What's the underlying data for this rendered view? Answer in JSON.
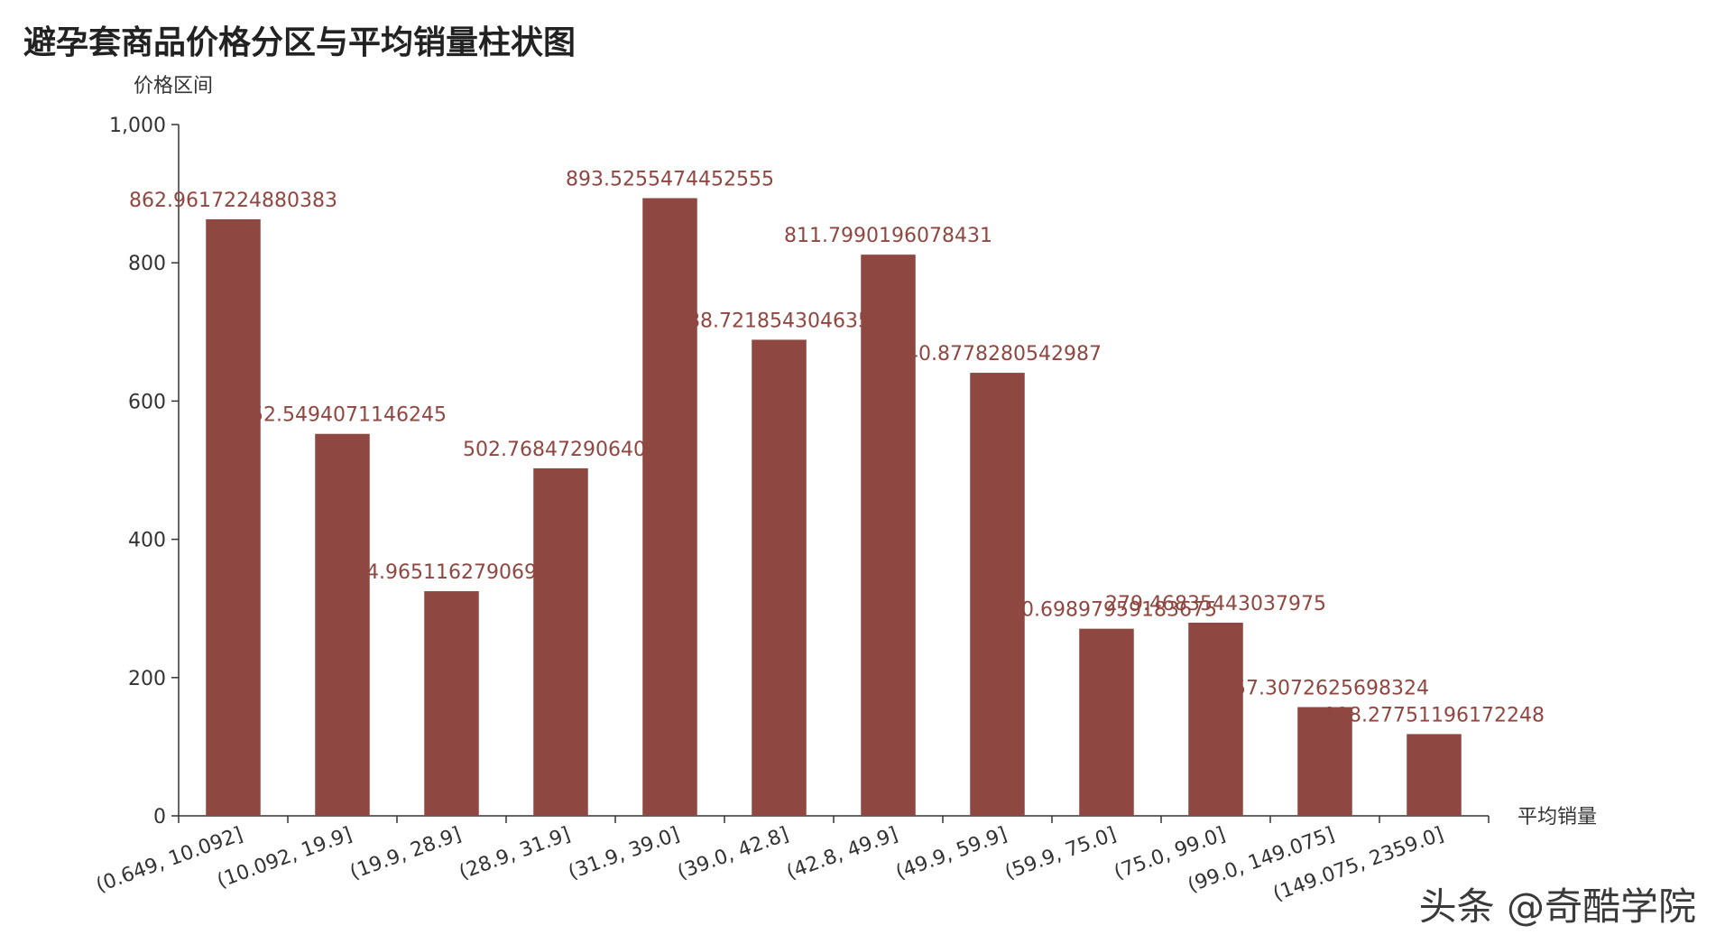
{
  "chart_data": {
    "type": "bar",
    "title": "避孕套商品价格分区与平均销量柱状图",
    "ylabel": "价格区间",
    "xlabel": "平均销量",
    "categories": [
      "(0.649, 10.092]",
      "(10.092, 19.9]",
      "(19.9, 28.9]",
      "(28.9, 31.9]",
      "(31.9, 39.0]",
      "(39.0, 42.8]",
      "(42.8, 49.9]",
      "(49.9, 59.9]",
      "(59.9, 75.0]",
      "(75.0, 99.0]",
      "(99.0, 149.075]",
      "(149.075, 2359.0]"
    ],
    "values": [
      862.9617224880383,
      552.5494071146245,
      324.9651162790698,
      502.768472906403,
      893.5255474452555,
      688.7218543046358,
      811.7990196078431,
      640.8778280542987,
      270.69897959183675,
      279.46835443037975,
      157.3072625698324,
      118.27751196172248
    ],
    "data_labels": [
      "862.9617224880383",
      "552.5494071146245",
      "324.96511627906977",
      "502.768472906403",
      "893.5255474452555",
      "688.7218543046358",
      "811.7990196078431",
      "640.8778280542987",
      "270.69897959183675",
      "279.46835443037975",
      "157.3072625698324",
      "118.27751196172248"
    ],
    "ylim": [
      0,
      1000
    ],
    "yticks": [
      0,
      200,
      400,
      600,
      800,
      1000
    ],
    "ytick_labels": [
      "0",
      "200",
      "400",
      "600",
      "800",
      "1,000"
    ],
    "grid": false,
    "bar_color": "#8f4741",
    "label_color": "#8f4741"
  },
  "watermark": "头条 @奇酷学院"
}
